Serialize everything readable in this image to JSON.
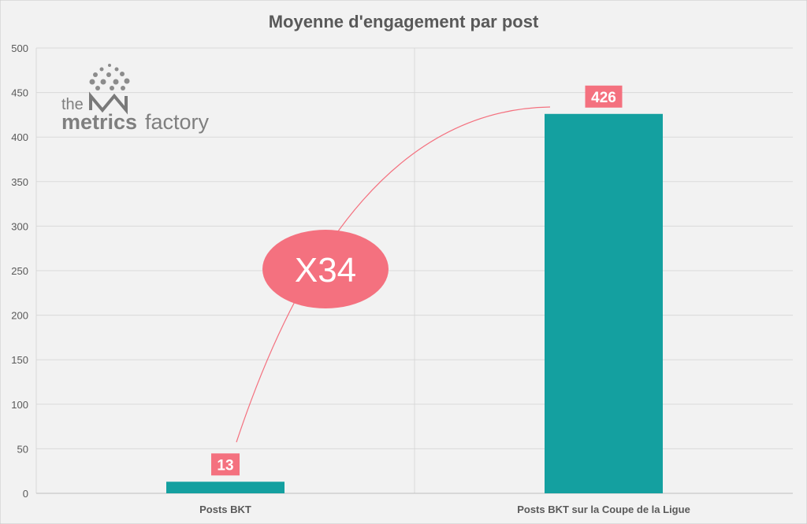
{
  "chart_data": {
    "type": "bar",
    "title": "Moyenne d'engagement par post",
    "xlabel": "",
    "ylabel": "",
    "categories": [
      "Posts BKT",
      "Posts BKT sur la Coupe de la Ligue"
    ],
    "values": [
      13,
      426
    ],
    "data_labels": [
      "13",
      "426"
    ],
    "ylim": [
      0,
      500
    ],
    "yticks": [
      0,
      50,
      100,
      150,
      200,
      250,
      300,
      350,
      400,
      450,
      500
    ],
    "ytick_labels": [
      "0",
      "50",
      "100",
      "150",
      "200",
      "250",
      "300",
      "350",
      "400",
      "450",
      "500"
    ],
    "grid": true,
    "annotation": "X34",
    "colors": {
      "bar": "#14a0a0",
      "label_bg": "#f4717f",
      "annotation_fill": "#f4717f",
      "arrow": "#f4717f",
      "grid": "#d9d9d9",
      "background": "#f2f2f2"
    }
  },
  "logo": {
    "text_the": "the",
    "text_metrics": "metrics",
    "text_factory": "factory"
  }
}
